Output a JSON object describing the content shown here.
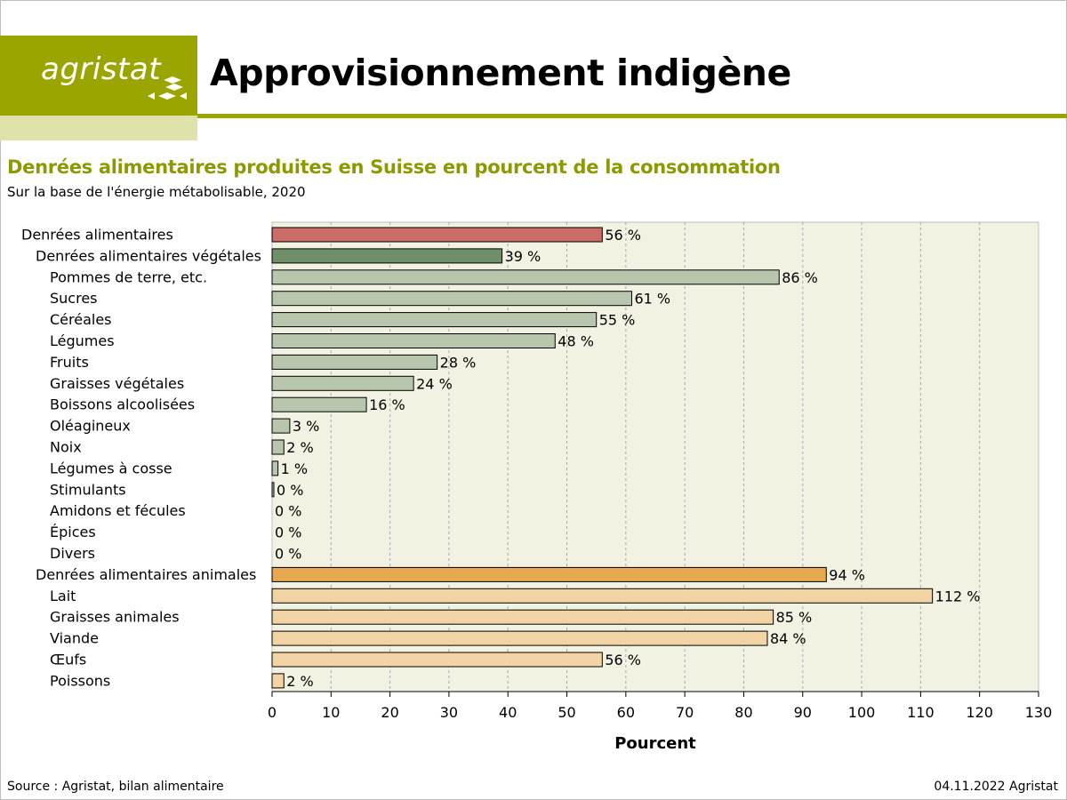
{
  "header": {
    "logo_text": "agristat",
    "title": "Approvisionnement indigène"
  },
  "chart_data": {
    "type": "bar",
    "orientation": "horizontal",
    "title": "Denrées alimentaires produites en Suisse en pourcent de la consommation",
    "subtitle": "Sur la base de l'énergie métabolisable, 2020",
    "xlabel": "Pourcent",
    "ylabel": "",
    "xlim": [
      0,
      130
    ],
    "xticks": [
      0,
      10,
      20,
      30,
      40,
      50,
      60,
      70,
      80,
      90,
      100,
      110,
      120,
      130
    ],
    "grid": "vertical dashed",
    "value_suffix": " %",
    "categories": [
      {
        "label": "Denrées alimentaires",
        "value": 56,
        "level": 0,
        "color": "#cd6b67"
      },
      {
        "label": "Denrées alimentaires végétales",
        "value": 39,
        "level": 1,
        "color": "#6f8f6b"
      },
      {
        "label": "Pommes de terre, etc.",
        "value": 86,
        "level": 2,
        "color": "#b8c6ad"
      },
      {
        "label": "Sucres",
        "value": 61,
        "level": 2,
        "color": "#b8c6ad"
      },
      {
        "label": "Céréales",
        "value": 55,
        "level": 2,
        "color": "#b8c6ad"
      },
      {
        "label": "Légumes",
        "value": 48,
        "level": 2,
        "color": "#b8c6ad"
      },
      {
        "label": "Fruits",
        "value": 28,
        "level": 2,
        "color": "#b8c6ad"
      },
      {
        "label": "Graisses végétales",
        "value": 24,
        "level": 2,
        "color": "#b8c6ad"
      },
      {
        "label": "Boissons alcoolisées",
        "value": 16,
        "level": 2,
        "color": "#b8c6ad"
      },
      {
        "label": "Oléagineux",
        "value": 3,
        "level": 2,
        "color": "#b8c6ad"
      },
      {
        "label": "Noix",
        "value": 2,
        "level": 2,
        "color": "#b8c6ad"
      },
      {
        "label": "Légumes à cosse",
        "value": 1,
        "level": 2,
        "color": "#b8c6ad"
      },
      {
        "label": "Stimulants",
        "value": 0.3,
        "level": 2,
        "color": "#b8c6ad",
        "display": "0 %"
      },
      {
        "label": "Amidons et fécules",
        "value": 0,
        "level": 2,
        "color": "#b8c6ad"
      },
      {
        "label": "Épices",
        "value": 0,
        "level": 2,
        "color": "#b8c6ad"
      },
      {
        "label": "Divers",
        "value": 0,
        "level": 2,
        "color": "#b8c6ad"
      },
      {
        "label": "Denrées alimentaires animales",
        "value": 94,
        "level": 1,
        "color": "#e6a94f"
      },
      {
        "label": "Lait",
        "value": 112,
        "level": 2,
        "color": "#f2d3a4"
      },
      {
        "label": "Graisses animales",
        "value": 85,
        "level": 2,
        "color": "#f2d3a4"
      },
      {
        "label": "Viande",
        "value": 84,
        "level": 2,
        "color": "#f2d3a4"
      },
      {
        "label": "Œufs",
        "value": 56,
        "level": 2,
        "color": "#f2d3a4"
      },
      {
        "label": "Poissons",
        "value": 2,
        "level": 2,
        "color": "#f2d3a4"
      }
    ]
  },
  "footer": {
    "source": "Source : Agristat, bilan alimentaire",
    "date": "04.11.2022 Agristat"
  },
  "colors": {
    "brand": "#9aa500",
    "brand_light": "#dfe3aa",
    "plot_background": "#f1f2e2"
  }
}
